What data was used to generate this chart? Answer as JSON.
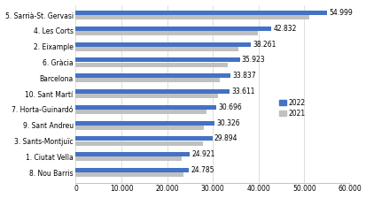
{
  "categories": [
    "8. Nou Barris",
    "1. Ciutat Vella",
    "3. Sants-Montjuïc",
    "9. Sant Andreu",
    "7. Horta-Guinardó",
    "10. Sant Martí",
    "Barcelona",
    "6. Gràcia",
    "2. Eixample",
    "4. Les Corts",
    "5. Sarrià-St. Gervasi"
  ],
  "values_2022": [
    24785,
    24921,
    29894,
    30326,
    30696,
    33611,
    33837,
    35923,
    38261,
    42832,
    54999
  ],
  "labels_2022": [
    "24.785",
    "24.921",
    "29.894",
    "30.326",
    "30.696",
    "33.611",
    "33.837",
    "35.923",
    "38.261",
    "42.832",
    "54.999"
  ],
  "values_2021": [
    23500,
    23100,
    27800,
    28100,
    28500,
    31200,
    31500,
    33300,
    35600,
    39800,
    51000
  ],
  "color_2022": "#4472C4",
  "color_2021": "#C0C0C0",
  "xlim": [
    0,
    60000
  ],
  "xticks": [
    0,
    10000,
    20000,
    30000,
    40000,
    50000,
    60000
  ],
  "xtick_labels": [
    "0",
    "10.000",
    "20.000",
    "30.000",
    "40.000",
    "50.000",
    "60.000"
  ],
  "bar_height": 0.28,
  "bar_gap": 0.02,
  "label_fontsize": 5.5,
  "tick_fontsize": 5.5,
  "legend_2022": "2022",
  "legend_2021": "2021",
  "background_color": "#FFFFFF"
}
